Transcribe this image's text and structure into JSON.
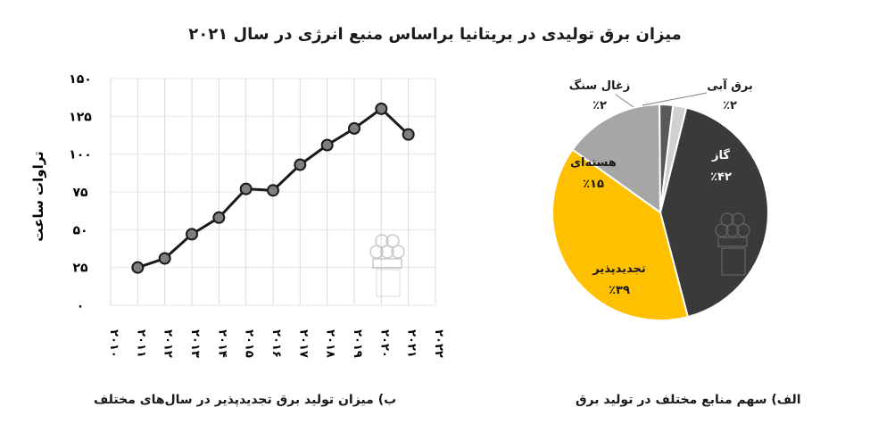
{
  "title": "میزان برق تولیدی در بریتانیا براساس منبع انرژی در سال ۲۰۲۱",
  "captions": {
    "line": "ب) میزان تولید برق تجدیدپذیر در سال‌های مختلف",
    "pie": "الف) سهم منابع مختلف در تولید برق"
  },
  "watermark": "مجلس شورای اسلامی مرکز پژوهش‌ها",
  "chart_data": [
    {
      "type": "line",
      "ylabel": "تراوات ساعت",
      "xlabel": "",
      "ylim": [
        0,
        150
      ],
      "yticks": [
        0,
        25,
        50,
        75,
        100,
        125,
        150
      ],
      "ytick_labels": [
        "۰",
        "۲۵",
        "۵۰",
        "۷۵",
        "۱۰۰",
        "۱۲۵",
        "۱۵۰"
      ],
      "categories": [
        "۲۰۱۰",
        "۲۰۱۱",
        "۲۰۱۲",
        "۲۰۱۳",
        "۲۰۱۴",
        "۲۰۱۵",
        "۲۰۱۶",
        "۲۰۱۷",
        "۲۰۱۸",
        "۲۰۱۹",
        "۲۰۲۰",
        "۲۰۲۱",
        "۲۰۲۲"
      ],
      "series": [
        {
          "values": [
            null,
            25,
            31,
            47,
            58,
            77,
            76,
            93,
            106,
            117,
            130,
            113,
            null
          ]
        }
      ],
      "grid": true
    },
    {
      "type": "pie",
      "slices": [
        {
          "label": "گاز",
          "value": 42,
          "value_label": "٪۴۲",
          "color": "#3a3a3a"
        },
        {
          "label": "تجدیدپذیر",
          "value": 39,
          "value_label": "٪۳۹",
          "color": "#ffc000"
        },
        {
          "label": "هسته‌ای",
          "value": 15,
          "value_label": "٪۱۵",
          "color": "#a6a6a6"
        },
        {
          "label": "زغال سنگ",
          "value": 2,
          "value_label": "٪۲",
          "color": "#595959"
        },
        {
          "label": "برق آبی",
          "value": 2,
          "value_label": "٪۲",
          "color": "#d0d0d0"
        }
      ]
    }
  ]
}
